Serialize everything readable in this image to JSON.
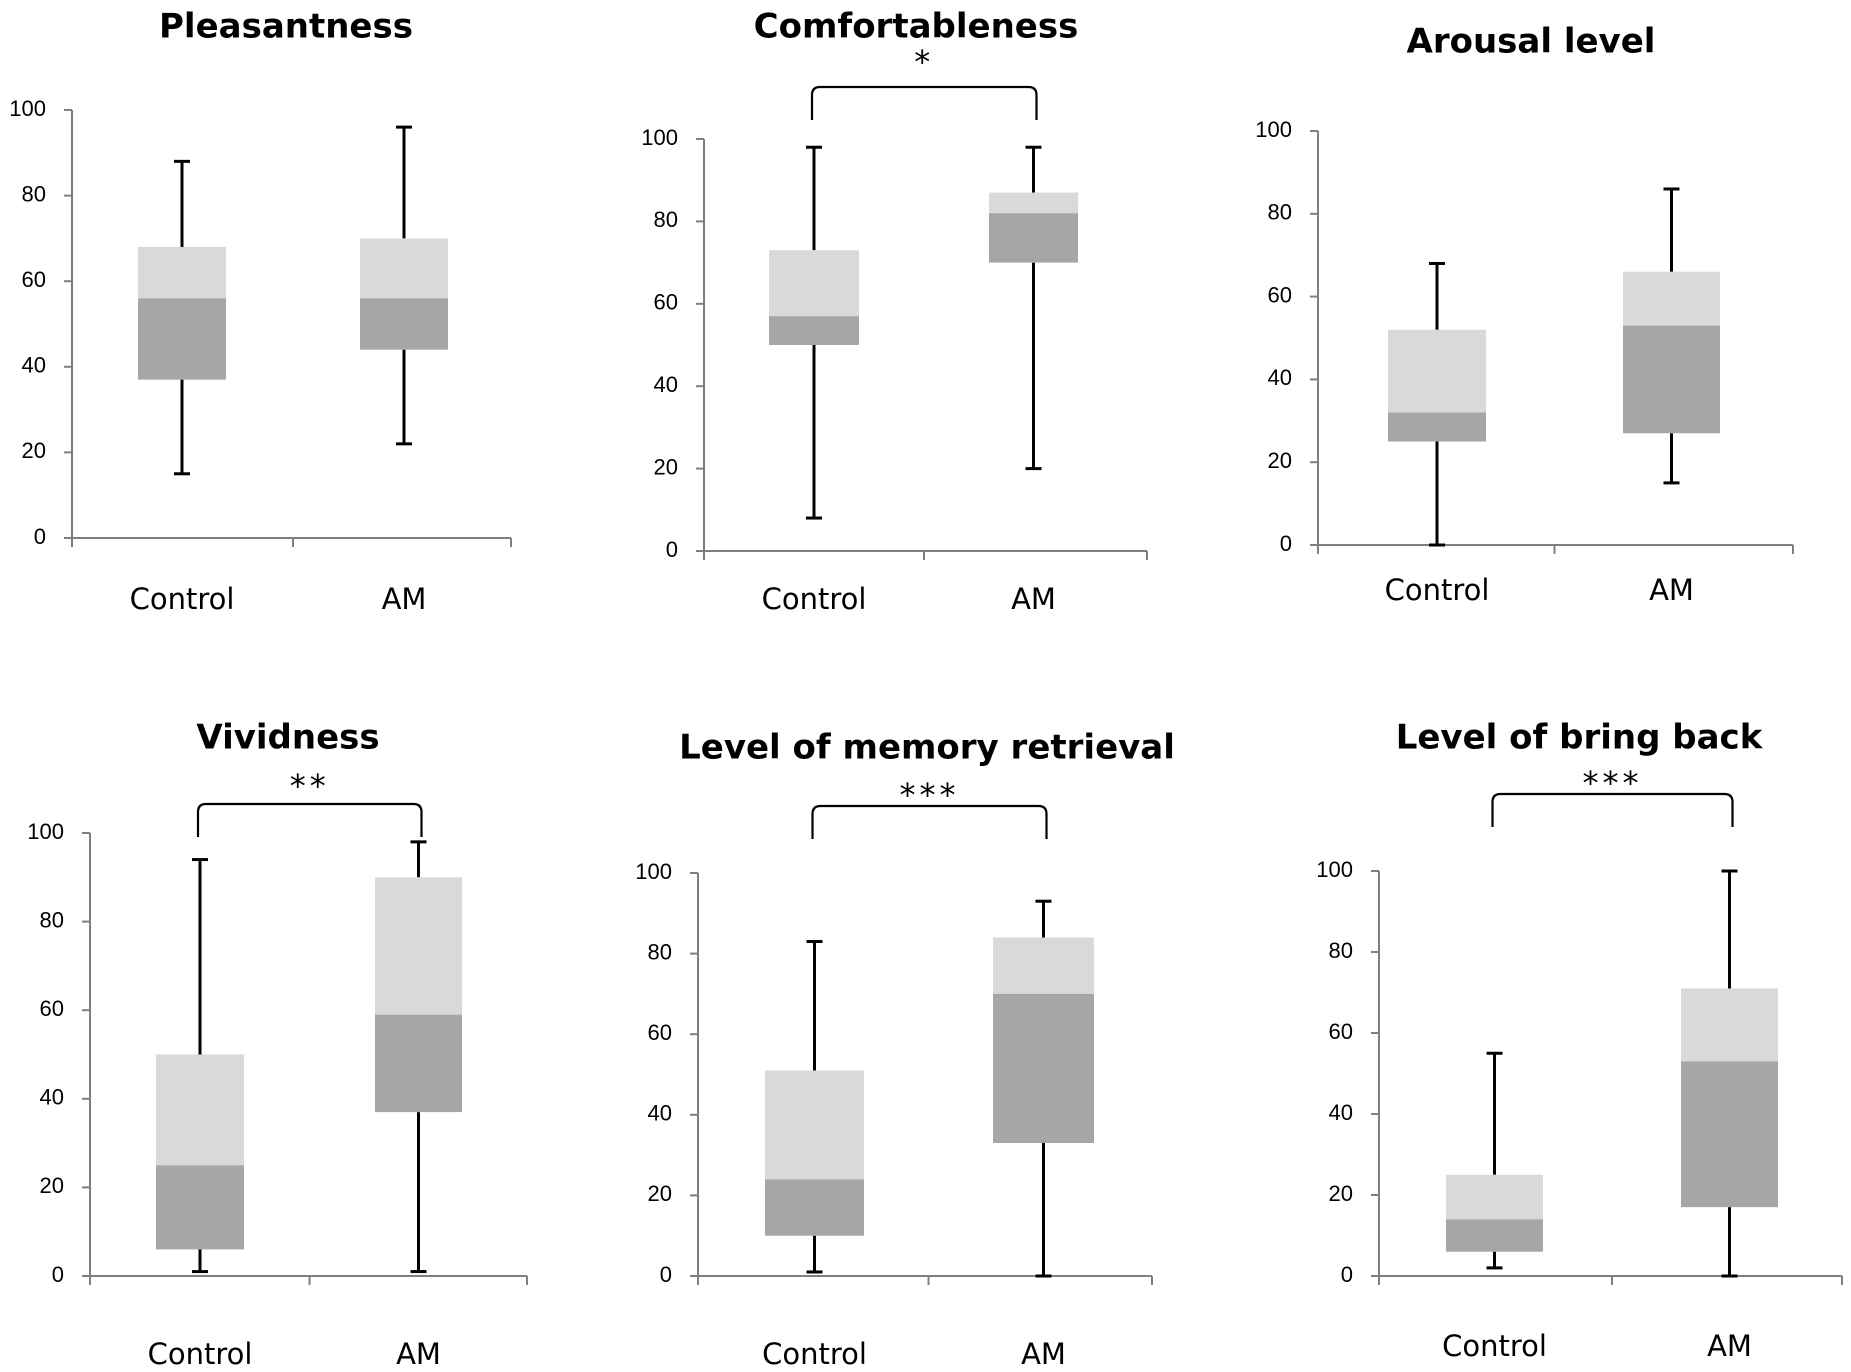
{
  "chart_data": [
    {
      "type": "boxplot",
      "title": "Pleasantness",
      "categories": [
        "Control",
        "AM"
      ],
      "ylim": [
        0,
        100
      ],
      "yticks": [
        "0",
        "20",
        "40",
        "60",
        "80",
        "100"
      ],
      "series": [
        {
          "name": "Control",
          "min": 15,
          "q1": 37,
          "median": 56,
          "q3": 68,
          "max": 88
        },
        {
          "name": "AM",
          "min": 22,
          "q1": 44,
          "median": 56,
          "q3": 70,
          "max": 96
        }
      ],
      "significance": ""
    },
    {
      "type": "boxplot",
      "title": "Comfortableness",
      "categories": [
        "Control",
        "AM"
      ],
      "ylim": [
        0,
        100
      ],
      "yticks": [
        "0",
        "20",
        "40",
        "60",
        "80",
        "100"
      ],
      "series": [
        {
          "name": "Control",
          "min": 8,
          "q1": 50,
          "median": 57,
          "q3": 73,
          "max": 98
        },
        {
          "name": "AM",
          "min": 20,
          "q1": 70,
          "median": 82,
          "q3": 87,
          "max": 98
        }
      ],
      "significance": "*"
    },
    {
      "type": "boxplot",
      "title": "Arousal level",
      "categories": [
        "Control",
        "AM"
      ],
      "ylim": [
        0,
        100
      ],
      "yticks": [
        "0",
        "20",
        "40",
        "60",
        "80",
        "100"
      ],
      "series": [
        {
          "name": "Control",
          "min": 0,
          "q1": 25,
          "median": 32,
          "q3": 52,
          "max": 68
        },
        {
          "name": "AM",
          "min": 15,
          "q1": 27,
          "median": 53,
          "q3": 66,
          "max": 86
        }
      ],
      "significance": ""
    },
    {
      "type": "boxplot",
      "title": "Vividness",
      "categories": [
        "Control",
        "AM"
      ],
      "ylim": [
        0,
        100
      ],
      "yticks": [
        "0",
        "20",
        "40",
        "60",
        "80",
        "100"
      ],
      "series": [
        {
          "name": "Control",
          "min": 1,
          "q1": 6,
          "median": 25,
          "q3": 50,
          "max": 94
        },
        {
          "name": "AM",
          "min": 1,
          "q1": 37,
          "median": 59,
          "q3": 90,
          "max": 98
        }
      ],
      "significance": "**"
    },
    {
      "type": "boxplot",
      "title": "Level of memory retrieval",
      "categories": [
        "Control",
        "AM"
      ],
      "ylim": [
        0,
        100
      ],
      "yticks": [
        "0",
        "20",
        "40",
        "60",
        "80",
        "100"
      ],
      "series": [
        {
          "name": "Control",
          "min": 1,
          "q1": 10,
          "median": 24,
          "q3": 51,
          "max": 83
        },
        {
          "name": "AM",
          "min": 0,
          "q1": 33,
          "median": 70,
          "q3": 84,
          "max": 93
        }
      ],
      "significance": "***"
    },
    {
      "type": "boxplot",
      "title": "Level of bring back",
      "categories": [
        "Control",
        "AM"
      ],
      "ylim": [
        0,
        100
      ],
      "yticks": [
        "0",
        "20",
        "40",
        "60",
        "80",
        "100"
      ],
      "series": [
        {
          "name": "Control",
          "min": 2,
          "q1": 6,
          "median": 14,
          "q3": 25,
          "max": 55
        },
        {
          "name": "AM",
          "min": 0,
          "q1": 17,
          "median": 53,
          "q3": 71,
          "max": 100
        }
      ],
      "significance": "***"
    }
  ],
  "colors": {
    "lower_box": "#a6a6a6",
    "upper_box": "#d9d9d9",
    "whisker": "#000000",
    "axis": "#7f7f7f"
  }
}
